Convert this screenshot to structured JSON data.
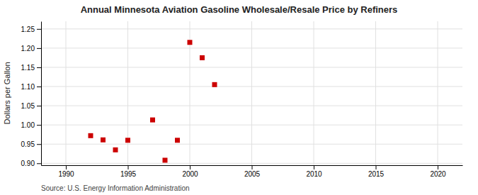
{
  "chart_data": {
    "type": "scatter",
    "title": "Annual Minnesota Aviation Gasoline Wholesale/Resale Price by Refiners",
    "ylabel": "Dollars per Gallon",
    "source": "Source: U.S. Energy Information Administration",
    "x": [
      1992,
      1993,
      1994,
      1995,
      1997,
      1998,
      1999,
      2000,
      2001,
      2002
    ],
    "values": [
      0.972,
      0.961,
      0.935,
      0.96,
      1.013,
      0.908,
      0.96,
      1.215,
      1.175,
      1.105
    ],
    "xlim": [
      1988,
      2022
    ],
    "ylim": [
      0.895,
      1.27
    ],
    "xticks": [
      1990,
      1995,
      2000,
      2005,
      2010,
      2015,
      2020
    ],
    "yticks": [
      {
        "value": 0.9,
        "label": "0.90"
      },
      0.95,
      {
        "value": 1.0,
        "label": "1.00"
      },
      1.05,
      {
        "value": 1.1,
        "label": "1.10"
      },
      1.15,
      {
        "value": 1.2,
        "label": "1.20"
      },
      1.25
    ],
    "color": "#cc0000",
    "marker": "square",
    "grid": true
  }
}
